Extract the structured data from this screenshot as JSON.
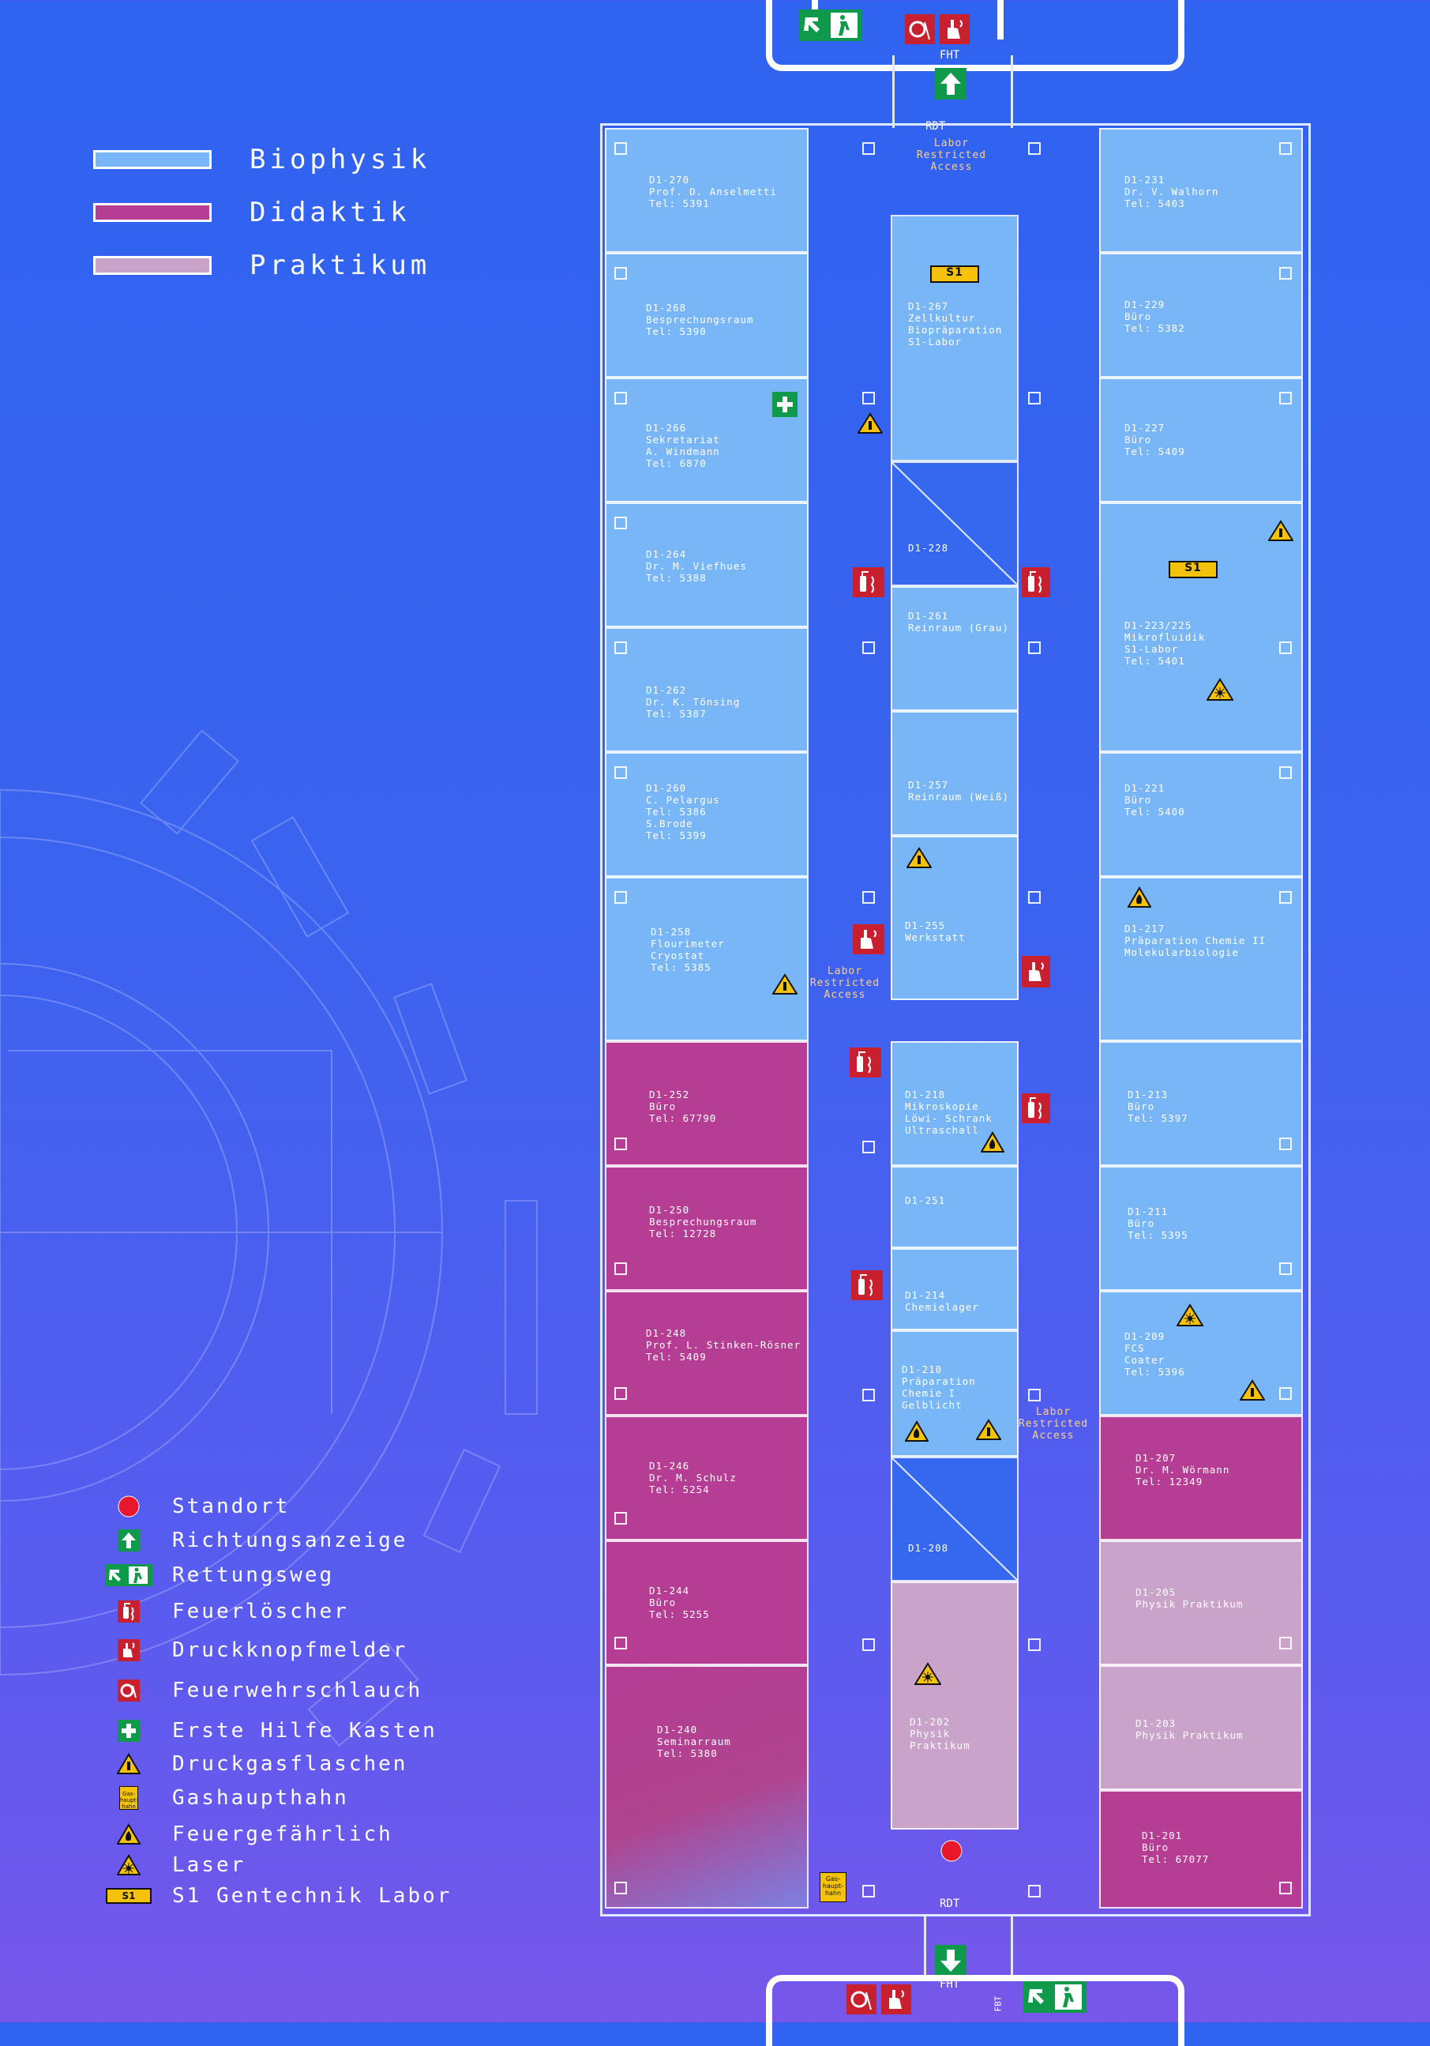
{
  "colors": {
    "biophysik": "#78b6f8",
    "didaktik": "#b53d94",
    "praktikum": "#c9a3c9",
    "standort": "#e8172b",
    "rettungsweg": "#0f9a4b",
    "feuer": "#c8202f",
    "warning": "#f5c20b"
  },
  "categories": [
    {
      "label": "Biophysik",
      "color": "#78b6f8"
    },
    {
      "label": "Didaktik",
      "color": "#b53d94"
    },
    {
      "label": "Praktikum",
      "color": "#c9a3c9"
    }
  ],
  "symbols": [
    {
      "label": "Standort",
      "icon": "standort-dot-icon"
    },
    {
      "label": "Richtungsanzeige",
      "icon": "direction-arrow-icon"
    },
    {
      "label": "Rettungsweg",
      "icon": "emergency-exit-icon"
    },
    {
      "label": "Feuerlöscher",
      "icon": "fire-extinguisher-icon"
    },
    {
      "label": "Druckknopfmelder",
      "icon": "fire-alarm-button-icon"
    },
    {
      "label": "Feuerwehrschlauch",
      "icon": "fire-hose-icon"
    },
    {
      "label": "Erste Hilfe Kasten",
      "icon": "first-aid-icon"
    },
    {
      "label": "Druckgasflaschen",
      "icon": "gas-cylinder-warning-icon"
    },
    {
      "label": "Gashaupthahn",
      "icon": "gas-main-valve-icon"
    },
    {
      "label": "Feuergefährlich",
      "icon": "flammable-warning-icon"
    },
    {
      "label": "Laser",
      "icon": "laser-warning-icon"
    },
    {
      "label": "S1 Gentechnik Labor",
      "icon": "s1-label-icon"
    }
  ],
  "plan": {
    "fht_top": "FHT",
    "rdt_top": "RDT",
    "fht_bottom": "FHT",
    "rdt_bottom": "RDT",
    "fbt_bottom": "FBT",
    "labor_restricted": "Labor\nRestricted\nAccess",
    "s1_badge": "S1",
    "gashaupthahn_sign": "Gas-\nhaupt-\nhahn"
  },
  "rooms": {
    "d1_270": "D1-270\nProf. D. Anselmetti\nTel: 5391",
    "d1_268": "D1-268\nBesprechungsraum\nTel: 5390",
    "d1_266": "D1-266\nSekretariat\nA. Windmann\nTel: 6870",
    "d1_264": "D1-264\nDr. M. Viefhues\nTel: 5388",
    "d1_262": "D1-262\nDr. K. Tönsing\nTel: 5387",
    "d1_260": "D1-260\nC. Pelargus\nTel: 5386\nS.Brode\nTel: 5399",
    "d1_258": "D1-258\nFlourimeter\nCryostat\nTel: 5385",
    "d1_252": "D1-252\nBüro\nTel: 67790",
    "d1_250": "D1-250\nBesprechungsraum\nTel: 12728",
    "d1_248": "D1-248\nProf. L. Stinken-Rösner\nTel: 5409",
    "d1_246": "D1-246\nDr. M. Schulz\nTel: 5254",
    "d1_244": "D1-244\nBüro\nTel: 5255",
    "d1_240": "D1-240\nSeminarraum\nTel: 5380",
    "d1_267": "D1-267\nZellkultur\nBiopräparation\nS1-Labor",
    "d1_228": "D1-228",
    "d1_261": "D1-261\nReinraum (Grau)",
    "d1_257": "D1-257\nReinraum (Weiß)",
    "d1_255": "D1-255\nWerkstatt",
    "d1_218": "D1-218\nMikroskopie\nLöwi- Schrank\nUltraschall",
    "d1_251": "D1-251",
    "d1_214": "D1-214\nChemielager",
    "d1_210": "D1-210\nPräparation\nChemie I\nGelblicht",
    "d1_208": "D1-208",
    "d1_202": "D1-202\nPhysik\nPraktikum",
    "d1_231": "D1-231\nDr. V. Walhorn\nTel: 5403",
    "d1_229": "D1-229\nBüro\nTel: 5382",
    "d1_227": "D1-227\nBüro\nTel: 5409",
    "d1_223": "D1-223/225\nMikrofluidik\nS1-Labor\nTel: 5401",
    "d1_221": "D1-221\nBüro\nTel: 5400",
    "d1_217": "D1-217\nPräparation Chemie II\nMolekularbiologie",
    "d1_213": "D1-213\nBüro\nTel: 5397",
    "d1_211": "D1-211\nBüro\nTel: 5395",
    "d1_209": "D1-209\nFCS\nCoater\nTel: 5396",
    "d1_207": "D1-207\nDr. M. Wörmann\nTel: 12349",
    "d1_205": "D1-205\nPhysik Praktikum",
    "d1_203": "D1-203\nPhysik Praktikum",
    "d1_201": "D1-201\nBüro\nTel: 67077"
  }
}
